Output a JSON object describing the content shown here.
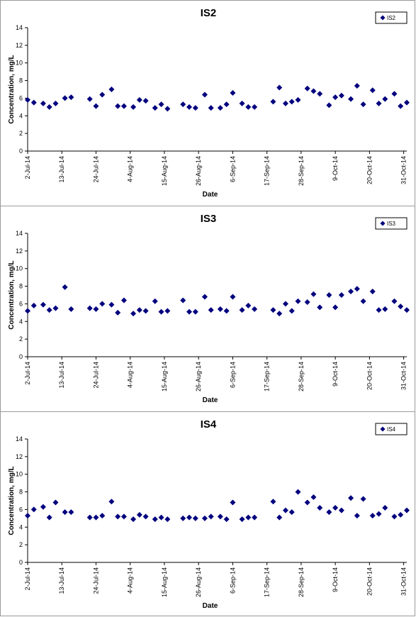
{
  "chart_data": [
    {
      "type": "scatter",
      "title": "IS2",
      "xlabel": "Date",
      "ylabel": "Concentration, mg/L",
      "ylim": [
        0,
        14
      ],
      "yticks": [
        0,
        2,
        4,
        6,
        8,
        10,
        12,
        14
      ],
      "xlim": [
        "2014-07-02",
        "2014-11-01"
      ],
      "xticks": [
        "2-Jul-14",
        "13-Jul-14",
        "24-Jul-14",
        "4-Aug-14",
        "15-Aug-14",
        "26-Aug-14",
        "6-Sep-14",
        "17-Sep-14",
        "28-Sep-14",
        "9-Oct-14",
        "20-Oct-14",
        "31-Oct-14"
      ],
      "grid": false,
      "legend": "top-right",
      "series": [
        {
          "name": "IS2",
          "color": "#00007e",
          "x": [
            "2014-07-02",
            "2014-07-04",
            "2014-07-07",
            "2014-07-09",
            "2014-07-11",
            "2014-07-14",
            "2014-07-16",
            "2014-07-22",
            "2014-07-24",
            "2014-07-26",
            "2014-07-29",
            "2014-07-31",
            "2014-08-02",
            "2014-08-05",
            "2014-08-07",
            "2014-08-09",
            "2014-08-12",
            "2014-08-14",
            "2014-08-16",
            "2014-08-21",
            "2014-08-23",
            "2014-08-25",
            "2014-08-28",
            "2014-08-30",
            "2014-09-02",
            "2014-09-04",
            "2014-09-06",
            "2014-09-09",
            "2014-09-11",
            "2014-09-13",
            "2014-09-19",
            "2014-09-21",
            "2014-09-23",
            "2014-09-25",
            "2014-09-27",
            "2014-09-30",
            "2014-10-02",
            "2014-10-04",
            "2014-10-07",
            "2014-10-09",
            "2014-10-11",
            "2014-10-14",
            "2014-10-16",
            "2014-10-18",
            "2014-10-21",
            "2014-10-23",
            "2014-10-25",
            "2014-10-28",
            "2014-10-30",
            "2014-11-01"
          ],
          "y": [
            5.8,
            5.5,
            5.4,
            5.0,
            5.4,
            6.0,
            6.1,
            5.9,
            5.1,
            6.4,
            7.0,
            5.1,
            5.1,
            5.0,
            5.8,
            5.7,
            4.9,
            5.3,
            4.8,
            5.3,
            5.0,
            4.9,
            6.4,
            4.9,
            4.9,
            5.3,
            6.6,
            5.4,
            5.0,
            5.0,
            5.6,
            7.2,
            5.4,
            5.6,
            5.8,
            7.1,
            6.8,
            6.5,
            5.2,
            6.1,
            6.3,
            5.9,
            7.4,
            5.3,
            6.9,
            5.4,
            5.9,
            6.5,
            5.1,
            5.5
          ]
        }
      ]
    },
    {
      "type": "scatter",
      "title": "IS3",
      "xlabel": "Date",
      "ylabel": "Concentration, mg/L",
      "ylim": [
        0,
        14
      ],
      "yticks": [
        0,
        2,
        4,
        6,
        8,
        10,
        12,
        14
      ],
      "xlim": [
        "2014-07-02",
        "2014-11-01"
      ],
      "xticks": [
        "2-Jul-14",
        "13-Jul-14",
        "24-Jul-14",
        "4-Aug-14",
        "15-Aug-14",
        "26-Aug-14",
        "6-Sep-14",
        "17-Sep-14",
        "28-Sep-14",
        "9-Oct-14",
        "20-Oct-14",
        "31-Oct-14"
      ],
      "grid": false,
      "legend": "top-right",
      "series": [
        {
          "name": "IS3",
          "color": "#00007e",
          "x": [
            "2014-07-02",
            "2014-07-04",
            "2014-07-07",
            "2014-07-09",
            "2014-07-11",
            "2014-07-14",
            "2014-07-16",
            "2014-07-22",
            "2014-07-24",
            "2014-07-26",
            "2014-07-29",
            "2014-07-31",
            "2014-08-02",
            "2014-08-05",
            "2014-08-07",
            "2014-08-09",
            "2014-08-12",
            "2014-08-14",
            "2014-08-16",
            "2014-08-21",
            "2014-08-23",
            "2014-08-25",
            "2014-08-28",
            "2014-08-30",
            "2014-09-02",
            "2014-09-04",
            "2014-09-06",
            "2014-09-09",
            "2014-09-11",
            "2014-09-13",
            "2014-09-19",
            "2014-09-21",
            "2014-09-23",
            "2014-09-25",
            "2014-09-27",
            "2014-09-30",
            "2014-10-02",
            "2014-10-04",
            "2014-10-07",
            "2014-10-09",
            "2014-10-11",
            "2014-10-14",
            "2014-10-16",
            "2014-10-18",
            "2014-10-21",
            "2014-10-23",
            "2014-10-25",
            "2014-10-28",
            "2014-10-30",
            "2014-11-01"
          ],
          "y": [
            5.2,
            5.8,
            5.9,
            5.3,
            5.5,
            7.9,
            5.4,
            5.5,
            5.4,
            6.0,
            5.9,
            5.0,
            6.4,
            4.9,
            5.3,
            5.2,
            6.3,
            5.1,
            5.2,
            6.4,
            5.1,
            5.1,
            6.8,
            5.3,
            5.4,
            5.2,
            6.8,
            5.3,
            5.8,
            5.4,
            5.3,
            4.9,
            6.0,
            5.2,
            6.3,
            6.2,
            7.1,
            5.6,
            7.0,
            5.6,
            7.0,
            7.4,
            7.7,
            6.3,
            7.4,
            5.3,
            5.4,
            6.3,
            5.7,
            5.3
          ]
        }
      ]
    },
    {
      "type": "scatter",
      "title": "IS4",
      "xlabel": "Date",
      "ylabel": "Concentration, mg/L",
      "ylim": [
        0,
        14
      ],
      "yticks": [
        0,
        2,
        4,
        6,
        8,
        10,
        12,
        14
      ],
      "xlim": [
        "2014-07-02",
        "2014-11-01"
      ],
      "xticks": [
        "2-Jul-14",
        "13-Jul-14",
        "24-Jul-14",
        "4-Aug-14",
        "15-Aug-14",
        "26-Aug-14",
        "6-Sep-14",
        "17-Sep-14",
        "28-Sep-14",
        "9-Oct-14",
        "20-Oct-14",
        "31-Oct-14"
      ],
      "grid": false,
      "legend": "top-right",
      "series": [
        {
          "name": "IS4",
          "color": "#00007e",
          "x": [
            "2014-07-02",
            "2014-07-04",
            "2014-07-07",
            "2014-07-09",
            "2014-07-11",
            "2014-07-14",
            "2014-07-16",
            "2014-07-22",
            "2014-07-24",
            "2014-07-26",
            "2014-07-29",
            "2014-07-31",
            "2014-08-02",
            "2014-08-05",
            "2014-08-07",
            "2014-08-09",
            "2014-08-12",
            "2014-08-14",
            "2014-08-16",
            "2014-08-21",
            "2014-08-23",
            "2014-08-25",
            "2014-08-28",
            "2014-08-30",
            "2014-09-02",
            "2014-09-04",
            "2014-09-06",
            "2014-09-09",
            "2014-09-11",
            "2014-09-13",
            "2014-09-19",
            "2014-09-21",
            "2014-09-23",
            "2014-09-25",
            "2014-09-27",
            "2014-09-30",
            "2014-10-02",
            "2014-10-04",
            "2014-10-07",
            "2014-10-09",
            "2014-10-11",
            "2014-10-14",
            "2014-10-16",
            "2014-10-18",
            "2014-10-21",
            "2014-10-23",
            "2014-10-25",
            "2014-10-28",
            "2014-10-30",
            "2014-11-01"
          ],
          "y": [
            5.3,
            6.0,
            6.3,
            5.1,
            6.8,
            5.7,
            5.7,
            5.1,
            5.1,
            5.3,
            6.9,
            5.2,
            5.2,
            4.9,
            5.4,
            5.2,
            4.9,
            5.1,
            4.9,
            5.0,
            5.1,
            5.0,
            5.0,
            5.2,
            5.2,
            4.9,
            6.8,
            4.9,
            5.1,
            5.1,
            6.9,
            5.1,
            5.9,
            5.7,
            8.0,
            6.8,
            7.4,
            6.2,
            5.7,
            6.2,
            5.9,
            7.3,
            5.3,
            7.2,
            5.3,
            5.5,
            6.2,
            5.2,
            5.4,
            5.9
          ]
        }
      ]
    }
  ]
}
